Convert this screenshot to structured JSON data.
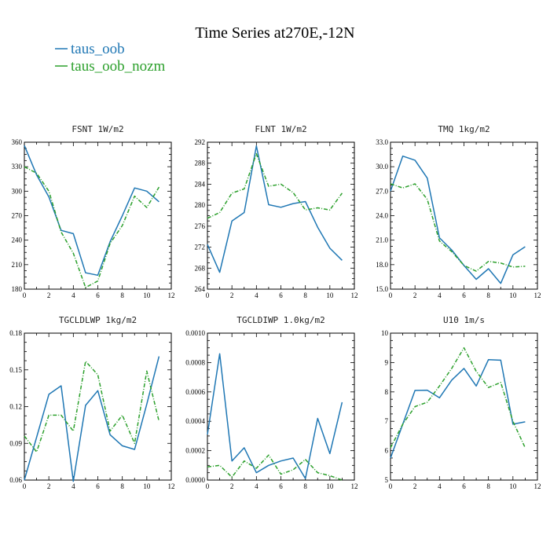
{
  "title": "Time Series at270E,-12N",
  "legend": [
    {
      "label": "taus_oob",
      "color": "#1f77b4",
      "dash": false
    },
    {
      "label": "taus_oob_nozm",
      "color": "#2ca02c",
      "dash": true
    }
  ],
  "chart_data": [
    {
      "type": "line",
      "title": "FSNT  1W/m2",
      "x": [
        0,
        1,
        2,
        3,
        4,
        5,
        6,
        7,
        8,
        9,
        10,
        11
      ],
      "xlim": [
        0,
        12
      ],
      "xticks": [
        "0",
        "2",
        "4",
        "6",
        "8",
        "10",
        "12"
      ],
      "ylim": [
        180,
        360
      ],
      "yticks": [
        "180",
        "210",
        "240",
        "270",
        "300",
        "330",
        "360"
      ],
      "series": [
        {
          "name": "taus_oob",
          "values": [
            356,
            320,
            293,
            252,
            248,
            200,
            197,
            238,
            270,
            304,
            300,
            287
          ]
        },
        {
          "name": "taus_oob_nozm",
          "values": [
            330,
            322,
            300,
            250,
            224,
            182,
            190,
            236,
            258,
            294,
            280,
            305
          ]
        }
      ]
    },
    {
      "type": "line",
      "title": "FLNT  1W/m2",
      "x": [
        0,
        1,
        2,
        3,
        4,
        5,
        6,
        7,
        8,
        9,
        10,
        11
      ],
      "xlim": [
        0,
        12
      ],
      "xticks": [
        "0",
        "2",
        "4",
        "6",
        "8",
        "10",
        "12"
      ],
      "ylim": [
        264,
        292
      ],
      "yticks": [
        "264",
        "268",
        "272",
        "276",
        "280",
        "284",
        "288",
        "292"
      ],
      "series": [
        {
          "name": "taus_oob",
          "values": [
            272.5,
            267.2,
            277,
            278.6,
            291.3,
            280.1,
            279.6,
            280.3,
            280.7,
            275.8,
            271.8,
            269.5
          ]
        },
        {
          "name": "taus_oob_nozm",
          "values": [
            277.5,
            278.6,
            282.3,
            283.1,
            289.8,
            283.6,
            284,
            282.4,
            279.1,
            279.5,
            279.1,
            282.3
          ]
        }
      ]
    },
    {
      "type": "line",
      "title": "TMQ  1kg/m2",
      "x": [
        0,
        1,
        2,
        3,
        4,
        5,
        6,
        7,
        8,
        9,
        10,
        11
      ],
      "xlim": [
        0,
        12
      ],
      "xticks": [
        "0",
        "2",
        "4",
        "6",
        "8",
        "10",
        "12"
      ],
      "ylim": [
        15,
        33
      ],
      "yticks": [
        "15.0",
        "18.0",
        "21.0",
        "24.0",
        "27.0",
        "30.0",
        "33.0"
      ],
      "series": [
        {
          "name": "taus_oob",
          "values": [
            27,
            31.3,
            30.8,
            28.6,
            21.3,
            19.8,
            17.9,
            16.2,
            17.5,
            15.7,
            19.2,
            20.2
          ]
        },
        {
          "name": "taus_oob_nozm",
          "values": [
            27.9,
            27.4,
            27.9,
            26,
            20.9,
            19.6,
            17.9,
            17.2,
            18.4,
            18.2,
            17.7,
            17.8
          ]
        }
      ]
    },
    {
      "type": "line",
      "title": "TGCLDLWP  1kg/m2",
      "x": [
        0,
        1,
        2,
        3,
        4,
        5,
        6,
        7,
        8,
        9,
        10,
        11
      ],
      "xlim": [
        0,
        12
      ],
      "xticks": [
        "0",
        "2",
        "4",
        "6",
        "8",
        "10",
        "12"
      ],
      "ylim": [
        0.06,
        0.18
      ],
      "yticks": [
        "0.06",
        "0.09",
        "0.12",
        "0.15",
        "0.18"
      ],
      "series": [
        {
          "name": "taus_oob",
          "values": [
            0.06,
            0.095,
            0.13,
            0.137,
            0.059,
            0.121,
            0.133,
            0.097,
            0.088,
            0.085,
            0.122,
            0.161
          ]
        },
        {
          "name": "taus_oob_nozm",
          "values": [
            0.096,
            0.083,
            0.113,
            0.113,
            0.1,
            0.157,
            0.146,
            0.1,
            0.113,
            0.09,
            0.149,
            0.108
          ]
        }
      ]
    },
    {
      "type": "line",
      "title": "TGCLDIWP  1.0kg/m2",
      "x": [
        0,
        1,
        2,
        3,
        4,
        5,
        6,
        7,
        8,
        9,
        10,
        11
      ],
      "xlim": [
        0,
        12
      ],
      "xticks": [
        "0",
        "2",
        "4",
        "6",
        "8",
        "10",
        "12"
      ],
      "ylim": [
        0,
        0.001
      ],
      "yticks": [
        "0.0000",
        "0.0002",
        "0.0004",
        "0.0006",
        "0.0008",
        "0.0010"
      ],
      "series": [
        {
          "name": "taus_oob",
          "values": [
            0.00031,
            0.00086,
            0.00013,
            0.00022,
            5e-05,
            0.0001,
            0.00013,
            0.00015,
            1e-05,
            0.00042,
            0.00018,
            0.00053
          ]
        },
        {
          "name": "taus_oob_nozm",
          "values": [
            9e-05,
            0.0001,
            2e-05,
            0.00013,
            8e-05,
            0.00017,
            4e-05,
            7e-05,
            0.00014,
            5e-05,
            3e-05,
            0.0
          ]
        }
      ]
    },
    {
      "type": "line",
      "title": "U10  1m/s",
      "x": [
        0,
        1,
        2,
        3,
        4,
        5,
        6,
        7,
        8,
        9,
        10,
        11
      ],
      "xlim": [
        0,
        12
      ],
      "xticks": [
        "0",
        "2",
        "4",
        "6",
        "8",
        "10",
        "12"
      ],
      "ylim": [
        5,
        10
      ],
      "yticks": [
        "5",
        "6",
        "7",
        "8",
        "9",
        "10"
      ],
      "series": [
        {
          "name": "taus_oob",
          "values": [
            5.75,
            6.9,
            8.05,
            8.06,
            7.8,
            8.4,
            8.8,
            8.2,
            9.1,
            9.08,
            6.9,
            6.98
          ]
        },
        {
          "name": "taus_oob_nozm",
          "values": [
            6.1,
            6.9,
            7.5,
            7.65,
            8.2,
            8.8,
            9.5,
            8.7,
            8.15,
            8.32,
            7.0,
            6.1
          ]
        }
      ]
    }
  ]
}
